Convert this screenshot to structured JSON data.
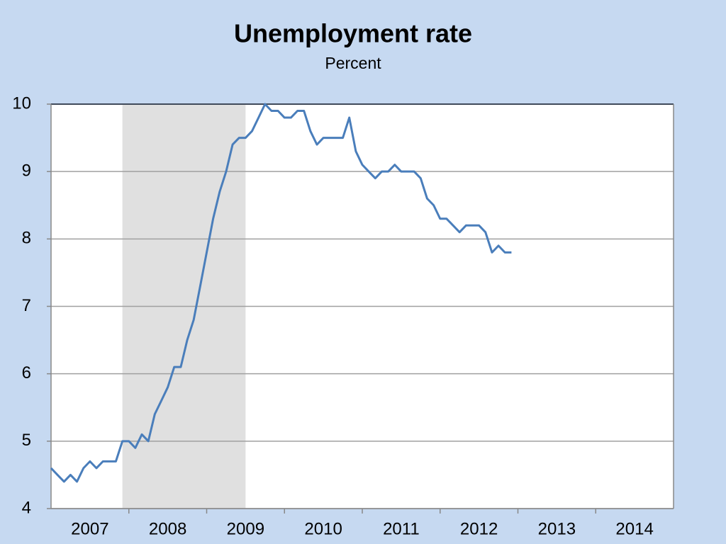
{
  "chart_data": {
    "type": "line",
    "title": "Unemployment rate",
    "subtitle": "Percent",
    "x": [
      2007.0,
      2007.083,
      2007.167,
      2007.25,
      2007.333,
      2007.417,
      2007.5,
      2007.583,
      2007.667,
      2007.75,
      2007.833,
      2007.917,
      2008.0,
      2008.083,
      2008.167,
      2008.25,
      2008.333,
      2008.417,
      2008.5,
      2008.583,
      2008.667,
      2008.75,
      2008.833,
      2008.917,
      2009.0,
      2009.083,
      2009.167,
      2009.25,
      2009.333,
      2009.417,
      2009.5,
      2009.583,
      2009.667,
      2009.75,
      2009.833,
      2009.917,
      2010.0,
      2010.083,
      2010.167,
      2010.25,
      2010.333,
      2010.417,
      2010.5,
      2010.583,
      2010.667,
      2010.75,
      2010.833,
      2010.917,
      2011.0,
      2011.083,
      2011.167,
      2011.25,
      2011.333,
      2011.417,
      2011.5,
      2011.583,
      2011.667,
      2011.75,
      2011.833,
      2011.917,
      2012.0,
      2012.083,
      2012.167,
      2012.25,
      2012.333,
      2012.417,
      2012.5,
      2012.583,
      2012.667,
      2012.75,
      2012.833,
      2012.917
    ],
    "values": [
      4.6,
      4.5,
      4.4,
      4.5,
      4.4,
      4.6,
      4.7,
      4.6,
      4.7,
      4.7,
      4.7,
      5.0,
      5.0,
      4.9,
      5.1,
      5.0,
      5.4,
      5.6,
      5.8,
      6.1,
      6.1,
      6.5,
      6.8,
      7.3,
      7.8,
      8.3,
      8.7,
      9.0,
      9.4,
      9.5,
      9.5,
      9.6,
      9.8,
      10.0,
      9.9,
      9.9,
      9.8,
      9.8,
      9.9,
      9.9,
      9.6,
      9.4,
      9.5,
      9.5,
      9.5,
      9.5,
      9.8,
      9.3,
      9.1,
      9.0,
      8.9,
      9.0,
      9.0,
      9.1,
      9.0,
      9.0,
      9.0,
      8.9,
      8.6,
      8.5,
      8.3,
      8.3,
      8.2,
      8.1,
      8.2,
      8.2,
      8.2,
      8.1,
      7.8,
      7.9,
      7.8,
      7.8
    ],
    "color": "#4a7ebb",
    "x_labels": [
      "2007",
      "2008",
      "2009",
      "2010",
      "2011",
      "2012",
      "2013",
      "2014"
    ],
    "xlim": [
      2007,
      2015
    ],
    "xticks": [
      2008,
      2009,
      2010,
      2011,
      2012,
      2013,
      2014
    ],
    "shaded_range": [
      2007.917,
      2009.5
    ],
    "shade_color": "#e0e0e0",
    "ylim": [
      4,
      10
    ],
    "yticks": [
      4,
      5,
      6,
      7,
      8,
      9,
      10
    ],
    "grid": true
  }
}
